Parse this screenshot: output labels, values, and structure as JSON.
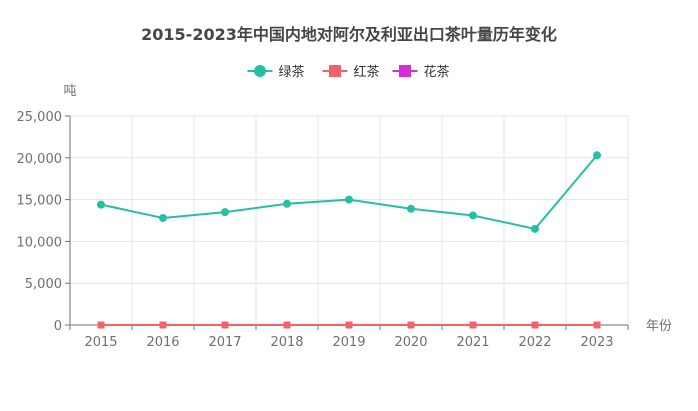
{
  "chart_data": {
    "type": "line",
    "title": "2015-2023年中国内地对阿尔及利亚出口茶叶量历年变化",
    "xlabel": "年份",
    "ylabel": "吨",
    "categories": [
      "2015",
      "2016",
      "2017",
      "2018",
      "2019",
      "2020",
      "2021",
      "2022",
      "2023"
    ],
    "ylim": [
      0,
      25000
    ],
    "yticks": [
      0,
      5000,
      10000,
      15000,
      20000,
      25000
    ],
    "ytick_labels": [
      "0",
      "5,000",
      "10,000",
      "15,000",
      "20,000",
      "25,000"
    ],
    "grid": true,
    "legend_position": "top-center",
    "series": [
      {
        "name": "绿茶",
        "color": "#26bfa6",
        "marker": "circle",
        "values": [
          14400,
          12800,
          13500,
          14500,
          15000,
          13900,
          13100,
          11500,
          20300
        ]
      },
      {
        "name": "红茶",
        "color": "#f2626b",
        "marker": "square",
        "values": [
          0,
          0,
          0,
          0,
          0,
          0,
          0,
          0,
          0
        ]
      },
      {
        "name": "花茶",
        "color": "#d62ed6",
        "marker": "square",
        "values": [
          0,
          0,
          0,
          0,
          0,
          0,
          0,
          0,
          0
        ]
      }
    ]
  }
}
